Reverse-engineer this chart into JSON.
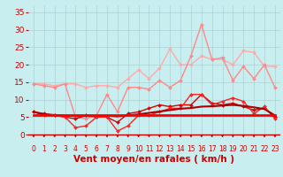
{
  "bg_color": "#c8eef0",
  "grid_color": "#b0d8dc",
  "xlabel": "Vent moyen/en rafales ( km/h )",
  "xlim": [
    -0.5,
    23.5
  ],
  "ylim": [
    -1,
    37
  ],
  "yticks": [
    0,
    5,
    10,
    15,
    20,
    25,
    30,
    35
  ],
  "xticks": [
    0,
    1,
    2,
    3,
    4,
    5,
    6,
    7,
    8,
    9,
    10,
    11,
    12,
    13,
    14,
    15,
    16,
    17,
    18,
    19,
    20,
    21,
    22,
    23
  ],
  "x": [
    0,
    1,
    2,
    3,
    4,
    5,
    6,
    7,
    8,
    9,
    10,
    11,
    12,
    13,
    14,
    15,
    16,
    17,
    18,
    19,
    20,
    21,
    22,
    23
  ],
  "series": [
    {
      "y": [
        14.5,
        14.5,
        14.0,
        14.5,
        14.5,
        13.5,
        14.0,
        14.0,
        13.5,
        16.0,
        18.5,
        16.0,
        19.0,
        24.5,
        20.0,
        20.0,
        22.5,
        21.5,
        21.5,
        20.0,
        24.0,
        23.5,
        19.5,
        19.5
      ],
      "color": "#ffaaaa",
      "lw": 1.0,
      "marker": "D",
      "ms": 2.0,
      "zorder": 3
    },
    {
      "y": [
        14.5,
        14.0,
        13.5,
        14.5,
        5.0,
        4.5,
        5.5,
        11.5,
        6.5,
        13.5,
        13.5,
        13.0,
        15.5,
        13.5,
        15.5,
        22.5,
        31.5,
        21.5,
        22.0,
        15.5,
        19.5,
        16.0,
        20.0,
        13.5
      ],
      "color": "#ff8888",
      "lw": 1.0,
      "marker": "D",
      "ms": 2.0,
      "zorder": 3
    },
    {
      "y": [
        6.5,
        6.0,
        5.5,
        5.0,
        4.5,
        5.5,
        5.0,
        5.0,
        3.5,
        6.0,
        6.5,
        7.5,
        8.5,
        8.0,
        8.5,
        8.5,
        11.5,
        9.0,
        8.5,
        9.0,
        8.0,
        7.0,
        7.5,
        5.0
      ],
      "color": "#dd0000",
      "lw": 1.0,
      "marker": "D",
      "ms": 2.0,
      "zorder": 4
    },
    {
      "y": [
        6.5,
        5.5,
        5.5,
        5.0,
        2.0,
        2.5,
        5.0,
        5.0,
        1.0,
        2.5,
        5.5,
        5.5,
        6.5,
        7.5,
        7.5,
        11.5,
        11.5,
        8.5,
        9.5,
        10.5,
        9.5,
        6.0,
        8.0,
        4.5
      ],
      "color": "#ff2222",
      "lw": 1.0,
      "marker": "D",
      "ms": 2.0,
      "zorder": 4
    },
    {
      "y": [
        6.5,
        5.8,
        5.6,
        5.4,
        5.3,
        5.3,
        5.3,
        5.4,
        5.2,
        5.5,
        5.8,
        6.2,
        6.6,
        7.0,
        7.4,
        7.6,
        8.0,
        8.1,
        8.3,
        8.5,
        8.2,
        7.8,
        7.3,
        5.5
      ],
      "color": "#aa0000",
      "lw": 1.5,
      "marker": null,
      "ms": 0,
      "zorder": 5
    },
    {
      "y": [
        5.5,
        5.5,
        5.5,
        5.5,
        5.5,
        5.5,
        5.5,
        5.5,
        5.5,
        5.5,
        5.5,
        5.5,
        5.5,
        5.5,
        5.5,
        5.5,
        5.5,
        5.5,
        5.5,
        5.5,
        5.5,
        5.5,
        5.5,
        5.5
      ],
      "color": "#ff0000",
      "lw": 2.0,
      "marker": null,
      "ms": 0,
      "zorder": 5
    }
  ],
  "arrow_color": "#cc0000",
  "xlabel_color": "#cc0000",
  "xlabel_fontsize": 7.5,
  "tick_color": "#cc0000",
  "tick_fontsize": 5.5,
  "ytick_fontsize": 6.5,
  "ytick_color": "#cc0000",
  "hline_color": "#cc0000",
  "hline_y": 0,
  "hline_lw": 1.0
}
